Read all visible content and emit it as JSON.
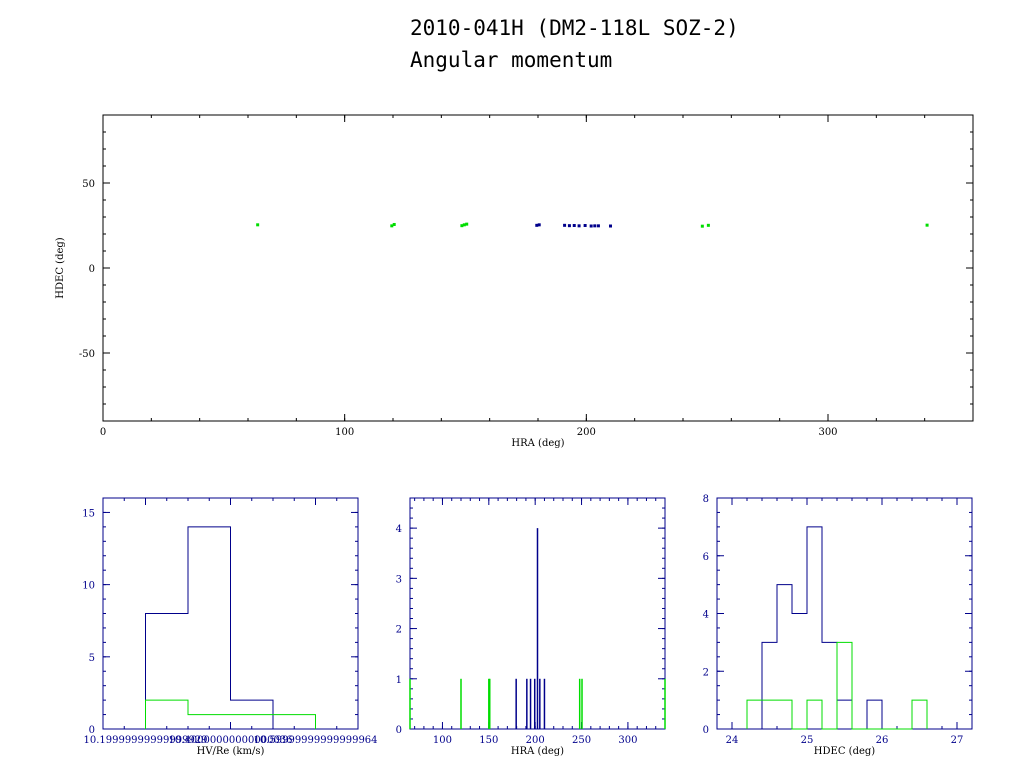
{
  "title_line1": "2010-041H (DM2-118L SOZ-2)",
  "title_line2": "Angular momentum",
  "colors": {
    "primary": "#00008b",
    "secondary": "#00dd00",
    "axis_black": "#000000"
  },
  "chart_data": [
    {
      "type": "scatter",
      "xlabel": "HRA (deg)",
      "ylabel": "HDEC (deg)",
      "xlim": [
        0,
        360
      ],
      "ylim": [
        -90,
        90
      ],
      "xticks": [
        0,
        100,
        200,
        300
      ],
      "yticks": [
        -50,
        0,
        50
      ],
      "series": [
        {
          "color": "blue",
          "points": [
            [
              179.5,
              25.1
            ],
            [
              180.5,
              25.4
            ],
            [
              191,
              25.1
            ],
            [
              193,
              24.9
            ],
            [
              195,
              25.0
            ],
            [
              197,
              24.8
            ],
            [
              199.5,
              25.0
            ],
            [
              202,
              24.7
            ],
            [
              203.5,
              24.8
            ],
            [
              205,
              24.8
            ],
            [
              210,
              24.7
            ]
          ]
        },
        {
          "color": "green",
          "points": [
            [
              64,
              25.4
            ],
            [
              119.5,
              24.8
            ],
            [
              120.5,
              25.6
            ],
            [
              148.5,
              24.9
            ],
            [
              149.5,
              25.4
            ],
            [
              150.5,
              25.8
            ],
            [
              248,
              24.6
            ],
            [
              250.5,
              25.1
            ],
            [
              341,
              25.2
            ]
          ]
        }
      ]
    },
    {
      "type": "histogram",
      "xlabel": "HV/Re (km/s)",
      "ylabel": "",
      "xlim": [
        10.1,
        10.7
      ],
      "ylim": [
        0,
        16
      ],
      "xticks": [
        10.2,
        10.4,
        10.6
      ],
      "yticks": [
        0,
        5,
        10,
        15
      ],
      "series": [
        {
          "color": "blue",
          "edges": [
            10.2,
            10.3,
            10.4,
            10.5
          ],
          "counts": [
            8,
            14,
            2
          ]
        },
        {
          "color": "green",
          "edges": [
            10.2,
            10.3,
            10.4,
            10.5,
            10.6
          ],
          "counts": [
            2,
            1,
            1,
            1
          ]
        }
      ]
    },
    {
      "type": "histogram",
      "xlabel": "HRA (deg)",
      "ylabel": "",
      "xlim": [
        65,
        340
      ],
      "ylim": [
        0,
        4.6
      ],
      "xticks": [
        100,
        150,
        200,
        250,
        300
      ],
      "yticks": [
        0,
        1,
        2,
        3,
        4
      ],
      "series": [
        {
          "color": "blue",
          "lines": [
            [
              179.5,
              1
            ],
            [
              191,
              1
            ],
            [
              195,
              1
            ],
            [
              199.5,
              1
            ],
            [
              202.5,
              4
            ],
            [
              205,
              1
            ],
            [
              210,
              1
            ]
          ]
        },
        {
          "color": "green",
          "lines": [
            [
              64,
              1
            ],
            [
              120,
              1
            ],
            [
              150,
              1
            ],
            [
              151,
              1
            ],
            [
              248,
              1
            ],
            [
              250.5,
              1
            ],
            [
              340,
              1
            ]
          ]
        }
      ]
    },
    {
      "type": "histogram",
      "xlabel": "HDEC (deg)",
      "ylabel": "",
      "xlim": [
        23.8,
        27.2
      ],
      "ylim": [
        0,
        8
      ],
      "xticks": [
        24,
        25,
        26,
        27
      ],
      "yticks": [
        0,
        2,
        4,
        6,
        8
      ],
      "series": [
        {
          "color": "blue",
          "edges": [
            24.4,
            24.6,
            24.8,
            25.0,
            25.2,
            25.4,
            25.6,
            25.8,
            26.0
          ],
          "counts": [
            3,
            5,
            4,
            7,
            3,
            1,
            0,
            1
          ]
        },
        {
          "color": "green",
          "edges": [
            24.2,
            24.4,
            24.6,
            24.8,
            25.0,
            25.2,
            25.4,
            25.6,
            25.8,
            26.0,
            26.2,
            26.4,
            26.6
          ],
          "counts": [
            1,
            1,
            1,
            0,
            1,
            0,
            3,
            0,
            0,
            0,
            0,
            1
          ]
        }
      ]
    }
  ]
}
